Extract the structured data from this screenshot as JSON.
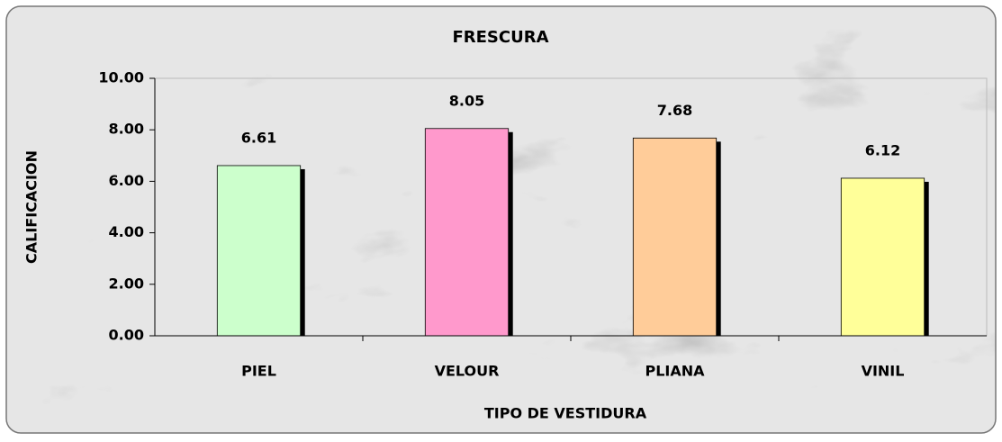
{
  "chart_data": {
    "type": "bar",
    "title": "FRESCURA",
    "x_label": "TIPO DE VESTIDURA",
    "y_label": "CALIFICACION",
    "categories": [
      "PIEL",
      "VELOUR",
      "PLIANA",
      "VINIL"
    ],
    "values": [
      6.61,
      8.05,
      7.68,
      6.12
    ],
    "colors": [
      "#ccffcc",
      "#ff99cc",
      "#ffcc99",
      "#ffff99"
    ],
    "ylim": [
      0,
      10
    ],
    "yticks": [
      {
        "value": 0,
        "label": "0.00"
      },
      {
        "value": 2,
        "label": "2.00"
      },
      {
        "value": 4,
        "label": "4.00"
      },
      {
        "value": 6,
        "label": "6.00"
      },
      {
        "value": 8,
        "label": "8.00"
      },
      {
        "value": 10,
        "label": "10.00"
      }
    ],
    "grid": false
  }
}
